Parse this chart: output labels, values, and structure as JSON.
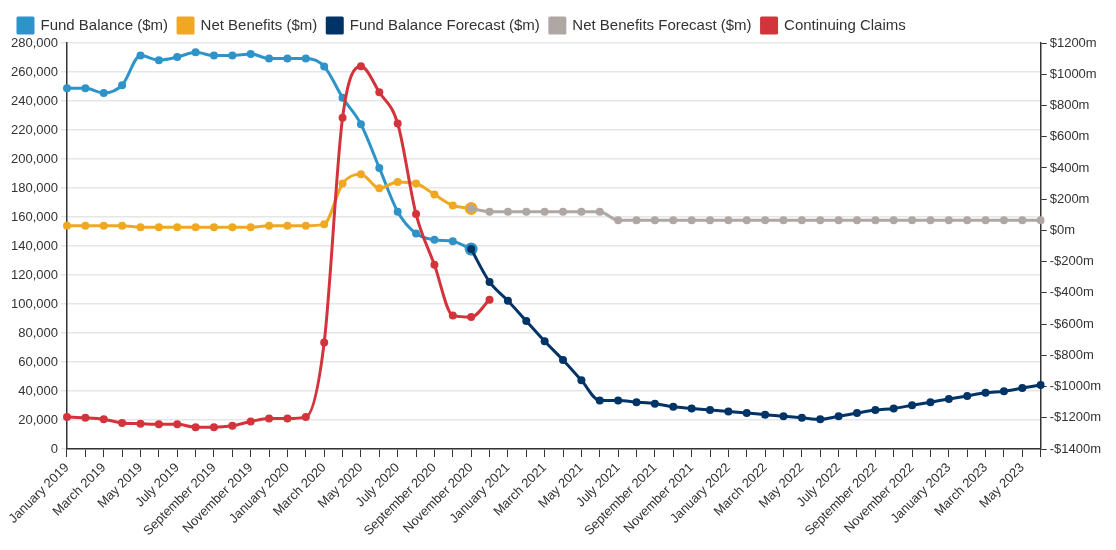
{
  "chart_data": {
    "type": "line",
    "categories": [
      "January 2019",
      null,
      "March 2019",
      null,
      "May 2019",
      null,
      "July 2019",
      null,
      "September 2019",
      null,
      "November 2019",
      null,
      "January 2020",
      null,
      "March 2020",
      null,
      "May 2020",
      null,
      "July 2020",
      null,
      "September 2020",
      null,
      "November 2020",
      null,
      "January 2021",
      null,
      "March 2021",
      null,
      "May 2021",
      null,
      "July 2021",
      null,
      "September 2021",
      null,
      "November 2021",
      null,
      "January 2022",
      null,
      "March 2022",
      null,
      "May 2022",
      null,
      "July 2022",
      null,
      "September 2022",
      null,
      "November 2022",
      null,
      "January 2023",
      null,
      "March 2023",
      null,
      "May 2023",
      null
    ],
    "series": [
      {
        "name": "Fund Balance ($m)",
        "color": "#2e93c8",
        "axis": "y2",
        "values": [
          910,
          910,
          880,
          930,
          1120,
          1090,
          1110,
          1140,
          1120,
          1120,
          1130,
          1100,
          1100,
          1100,
          1050,
          850,
          680,
          400,
          120,
          -20,
          -60,
          -70,
          -120,
          null,
          null,
          null,
          null,
          null,
          null,
          null,
          null,
          null,
          null,
          null,
          null,
          null,
          null,
          null,
          null,
          null,
          null,
          null,
          null,
          null,
          null,
          null,
          null,
          null,
          null,
          null,
          null,
          null,
          null,
          null
        ]
      },
      {
        "name": "Net Benefits ($m)",
        "color": "#f0a823",
        "axis": "y2",
        "values": [
          30,
          30,
          30,
          30,
          20,
          20,
          20,
          20,
          20,
          20,
          20,
          30,
          30,
          30,
          40,
          300,
          360,
          270,
          310,
          300,
          230,
          160,
          140,
          null,
          null,
          null,
          null,
          null,
          null,
          null,
          null,
          null,
          null,
          null,
          null,
          null,
          null,
          null,
          null,
          null,
          null,
          null,
          null,
          null,
          null,
          null,
          null,
          null,
          null,
          null,
          null,
          null,
          null,
          null
        ]
      },
      {
        "name": "Fund Balance Forecast ($m)",
        "color": "#003366",
        "axis": "y2",
        "values": [
          null,
          null,
          null,
          null,
          null,
          null,
          null,
          null,
          null,
          null,
          null,
          null,
          null,
          null,
          null,
          null,
          null,
          null,
          null,
          null,
          null,
          null,
          -120,
          -330,
          -450,
          -580,
          -710,
          -830,
          -960,
          -1090,
          -1090,
          -1100,
          -1110,
          -1130,
          -1140,
          -1150,
          -1160,
          -1170,
          -1180,
          -1190,
          -1200,
          -1210,
          -1190,
          -1170,
          -1150,
          -1140,
          -1120,
          -1100,
          -1080,
          -1060,
          -1040,
          -1030,
          -1010,
          -990
        ]
      },
      {
        "name": "Net Benefits Forecast ($m)",
        "color": "#aea7a3",
        "axis": "y2",
        "values": [
          null,
          null,
          null,
          null,
          null,
          null,
          null,
          null,
          null,
          null,
          null,
          null,
          null,
          null,
          null,
          null,
          null,
          null,
          null,
          null,
          null,
          null,
          140,
          120,
          120,
          120,
          120,
          120,
          120,
          120,
          65,
          65,
          65,
          65,
          65,
          65,
          65,
          65,
          65,
          65,
          65,
          65,
          65,
          65,
          65,
          65,
          65,
          65,
          65,
          65,
          65,
          65,
          65,
          65
        ]
      },
      {
        "name": "Continuing Claims",
        "color": "#d3343c",
        "axis": "y",
        "values": [
          22000,
          21500,
          20500,
          18000,
          17500,
          17000,
          17000,
          15000,
          15000,
          16000,
          19000,
          21000,
          21000,
          22000,
          73500,
          228500,
          264000,
          246000,
          224500,
          162000,
          127000,
          92000,
          91000,
          103000,
          null,
          null,
          null,
          null,
          null,
          null,
          null,
          null,
          null,
          null,
          null,
          null,
          null,
          null,
          null,
          null,
          null,
          null,
          null,
          null,
          null,
          null,
          null,
          null,
          null,
          null,
          null,
          null,
          null,
          null
        ]
      }
    ],
    "ylim": [
      0,
      280000
    ],
    "yticks": [
      0,
      {
        "value": 20000,
        "label": "20,000"
      },
      {
        "value": 40000,
        "label": "40,000"
      },
      {
        "value": 60000,
        "label": "60,000"
      },
      {
        "value": 80000,
        "label": "80,000"
      },
      {
        "value": 100000,
        "label": "100,000"
      },
      {
        "value": 120000,
        "label": "120,000"
      },
      {
        "value": 140000,
        "label": "140,000"
      },
      {
        "value": 160000,
        "label": "160,000"
      },
      {
        "value": 180000,
        "label": "180,000"
      },
      {
        "value": 200000,
        "label": "200,000"
      },
      {
        "value": 220000,
        "label": "220,000"
      },
      {
        "value": 240000,
        "label": "240,000"
      },
      {
        "value": 260000,
        "label": "260,000"
      },
      {
        "value": 280000,
        "label": "280,000"
      }
    ],
    "y2lim": [
      -1400,
      1200
    ],
    "y2ticks": [
      {
        "value": -1400,
        "label": "-$1400m"
      },
      {
        "value": -1200,
        "label": "-$1200m"
      },
      {
        "value": -1000,
        "label": "-$1000m"
      },
      {
        "value": -800,
        "label": "-$800m"
      },
      {
        "value": -600,
        "label": "-$600m"
      },
      {
        "value": -400,
        "label": "-$400m"
      },
      {
        "value": -200,
        "label": "-$200m"
      },
      {
        "value": 0,
        "label": "$0m"
      },
      {
        "value": 200,
        "label": "$200m"
      },
      {
        "value": 400,
        "label": "$400m"
      },
      {
        "value": 600,
        "label": "$600m"
      },
      {
        "value": 800,
        "label": "$800m"
      },
      {
        "value": 1000,
        "label": "$1000m"
      },
      {
        "value": 1200,
        "label": "$1200m"
      }
    ],
    "grid": "y",
    "legend": "top left",
    "marker": "circle"
  }
}
